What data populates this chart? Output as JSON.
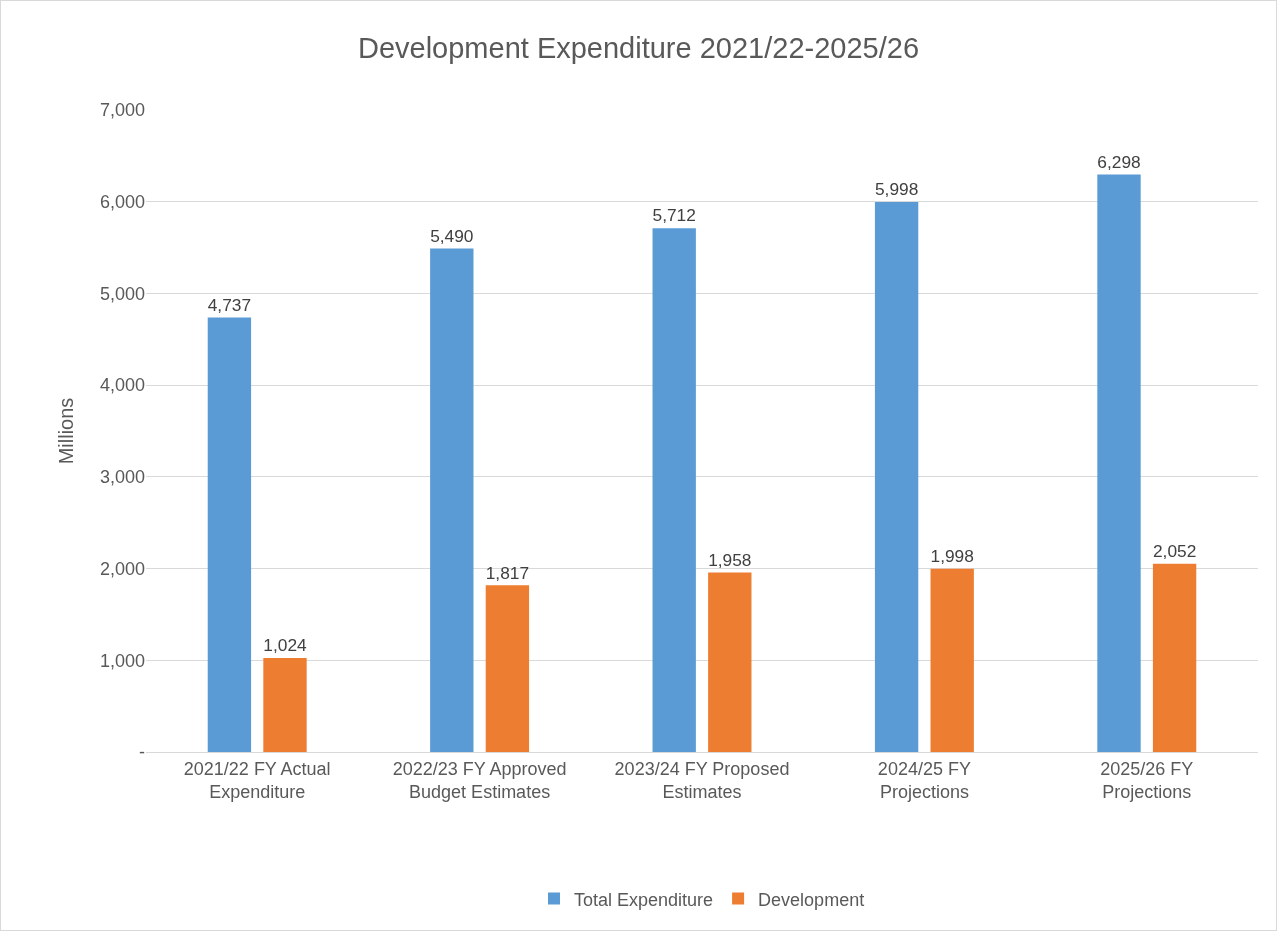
{
  "chart_data": {
    "type": "bar",
    "title": "Development Expenditure 2021/22-2025/26",
    "ylabel": "Millions",
    "categories": [
      "2021/22 FY Actual Expenditure",
      "2022/23 FY Approved Budget Estimates",
      "2023/24 FY Proposed Estimates",
      "2024/25 FY Projections",
      "2025/26 FY Projections"
    ],
    "series": [
      {
        "name": "Total Expenditure",
        "color": "#5b9bd5",
        "values": [
          4737,
          5490,
          5712,
          5998,
          6298
        ],
        "value_labels": [
          "4,737",
          "5,490",
          "5,712",
          "5,998",
          "6,298"
        ]
      },
      {
        "name": "Development",
        "color": "#ed7d31",
        "values": [
          1024,
          1817,
          1958,
          1998,
          2052
        ],
        "value_labels": [
          "1,024",
          "1,817",
          "1,958",
          "1,998",
          "2,052"
        ]
      }
    ],
    "ylim": [
      0,
      7000
    ],
    "yticks": [
      {
        "value": 0,
        "label": "-"
      },
      {
        "value": 1000,
        "label": "1,000"
      },
      {
        "value": 2000,
        "label": "2,000"
      },
      {
        "value": 3000,
        "label": "3,000"
      },
      {
        "value": 4000,
        "label": "4,000"
      },
      {
        "value": 5000,
        "label": "5,000"
      },
      {
        "value": 6000,
        "label": "6,000"
      },
      {
        "value": 7000,
        "label": "7,000"
      }
    ],
    "grid": "y",
    "legend": "bottom"
  }
}
